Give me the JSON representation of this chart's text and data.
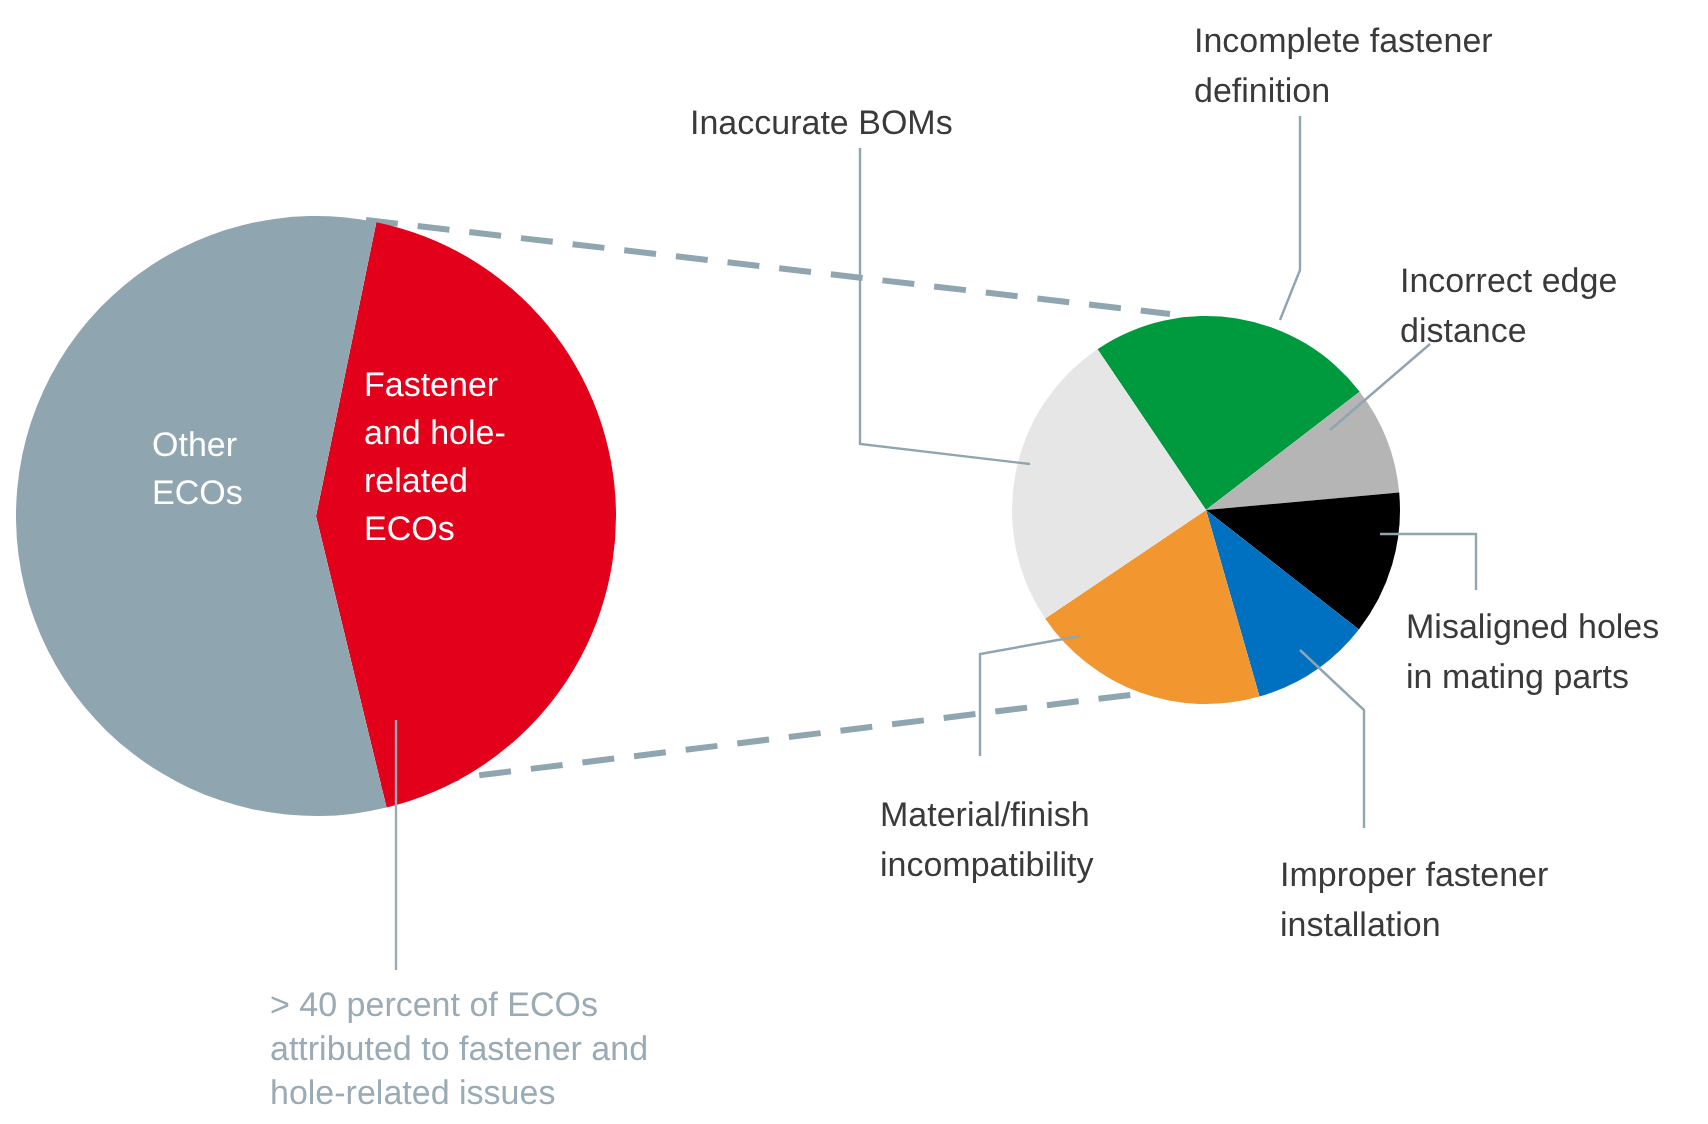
{
  "chart_data": [
    {
      "type": "pie",
      "categories": [
        "Fastener and hole-related ECOs",
        "Other ECOs"
      ],
      "values": [
        43,
        57
      ],
      "colors": [
        "#e2001a",
        "#8fa5b0"
      ],
      "annotations": [
        "> 40 percent of ECOs attributed to fastener and hole-related issues"
      ],
      "legend": false
    },
    {
      "type": "pie",
      "categories": [
        "Incomplete fastener definition",
        "Incorrect edge distance",
        "Misaligned holes in mating parts",
        "Improper fastener installation",
        "Material/finish incompatibility",
        "Inaccurate BOMs"
      ],
      "values": [
        24,
        9,
        12,
        10,
        20,
        25
      ],
      "colors": [
        "#009a3e",
        "#b5b5b5",
        "#000000",
        "#0070c0",
        "#f29630",
        "#e6e6e6"
      ],
      "legend": false
    }
  ]
}
